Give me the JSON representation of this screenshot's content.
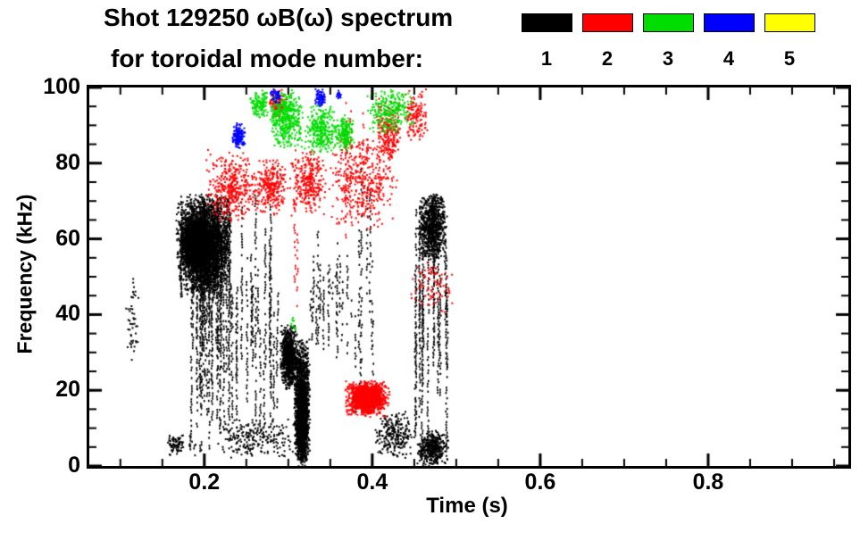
{
  "page": {
    "background": "#ffffff"
  },
  "chart_data": {
    "type": "scatter",
    "title": "Shot 129250 ωB(ω) spectrum",
    "subtitle": "for toroidal mode number:",
    "xlabel": "Time (s)",
    "ylabel": "Frequency (kHz)",
    "xlim": [
      0.063,
      0.967
    ],
    "ylim": [
      0,
      100
    ],
    "xticks": [
      0.2,
      0.4,
      0.6,
      0.8
    ],
    "xtick_labels": [
      "0.2",
      "0.4",
      "0.6",
      "0.8"
    ],
    "x_minor_step": 0.05,
    "yticks": [
      0,
      20,
      40,
      60,
      80,
      100
    ],
    "ytick_labels": [
      "0",
      "20",
      "40",
      "60",
      "80",
      "100"
    ],
    "y_minor_step": 5,
    "grid": false,
    "legend_position": "top-right",
    "legend": [
      {
        "label": "1",
        "color": "#000000"
      },
      {
        "label": "2",
        "color": "#ff0000"
      },
      {
        "label": "3",
        "color": "#00dd00"
      },
      {
        "label": "4",
        "color": "#0000ff"
      },
      {
        "label": "5",
        "color": "#ffff00"
      }
    ],
    "series": [
      {
        "name": "n=1",
        "color": "#000000",
        "clusters": [
          {
            "shape": "blob",
            "seed": 11,
            "t": [
              0.105,
              0.123
            ],
            "f": [
              23,
              54
            ],
            "n": 50
          },
          {
            "shape": "blob",
            "seed": 12,
            "t": [
              0.165,
              0.231
            ],
            "f": [
              45,
              72.5
            ],
            "n": 2800
          },
          {
            "shape": "blob",
            "seed": 13,
            "t": [
              0.169,
              0.207
            ],
            "f": [
              52,
              66
            ],
            "n": 1300
          },
          {
            "shape": "streaks",
            "seed": 14,
            "t": [
              0.168,
              0.232
            ],
            "f": [
              44,
              72
            ],
            "streaks": 45,
            "fill": 0.85
          },
          {
            "shape": "streaks",
            "seed": 15,
            "t": [
              0.18,
              0.287
            ],
            "f": [
              3,
              73
            ],
            "streaks": 52,
            "fill": 0.55
          },
          {
            "shape": "streaks",
            "seed": 16,
            "t": [
              0.176,
              0.2
            ],
            "f": [
              3,
              9
            ],
            "streaks": 8,
            "fill": 0.5
          },
          {
            "shape": "blob",
            "seed": 17,
            "t": [
              0.21,
              0.31
            ],
            "f": [
              2,
              13
            ],
            "n": 220
          },
          {
            "shape": "blob",
            "seed": 18,
            "t": [
              0.289,
              0.31
            ],
            "f": [
              20,
              38
            ],
            "n": 800
          },
          {
            "shape": "blob",
            "seed": 19,
            "t": [
              0.305,
              0.325
            ],
            "f": [
              0,
              34
            ],
            "n": 1500
          },
          {
            "shape": "blob",
            "seed": 20,
            "t": [
              0.308,
              0.322
            ],
            "f": [
              0,
              22
            ],
            "n": 900
          },
          {
            "shape": "streaks",
            "seed": 21,
            "t": [
              0.325,
              0.375
            ],
            "f": [
              28,
              64
            ],
            "streaks": 20,
            "fill": 0.45
          },
          {
            "shape": "streaks",
            "seed": 22,
            "t": [
              0.375,
              0.405
            ],
            "f": [
              5,
              90
            ],
            "streaks": 8,
            "fill": 0.4
          },
          {
            "shape": "streaks",
            "seed": 23,
            "t": [
              0.45,
              0.49
            ],
            "f": [
              0,
              76
            ],
            "streaks": 18,
            "fill": 0.6
          },
          {
            "shape": "blob",
            "seed": 24,
            "t": [
              0.452,
              0.488
            ],
            "f": [
              54,
              73
            ],
            "n": 800
          },
          {
            "shape": "blob",
            "seed": 25,
            "t": [
              0.452,
              0.49
            ],
            "f": [
              0,
              10
            ],
            "n": 400
          },
          {
            "shape": "blob",
            "seed": 26,
            "t": [
              0.4,
              0.45
            ],
            "f": [
              2,
              15
            ],
            "n": 250
          },
          {
            "shape": "blob",
            "seed": 27,
            "t": [
              0.153,
              0.176
            ],
            "f": [
              3,
              9
            ],
            "n": 80
          }
        ]
      },
      {
        "name": "n=2",
        "color": "#ff0000",
        "clusters": [
          {
            "shape": "blob",
            "seed": 31,
            "t": [
              0.2,
              0.262
            ],
            "f": [
              64,
              84
            ],
            "n": 380
          },
          {
            "shape": "blob",
            "seed": 32,
            "t": [
              0.255,
              0.3
            ],
            "f": [
              66,
              82
            ],
            "n": 280
          },
          {
            "shape": "streaks",
            "seed": 33,
            "t": [
              0.305,
              0.315
            ],
            "f": [
              40,
              88
            ],
            "streaks": 3,
            "fill": 0.4
          },
          {
            "shape": "blob",
            "seed": 34,
            "t": [
              0.3,
              0.345
            ],
            "f": [
              66,
              84
            ],
            "n": 300
          },
          {
            "shape": "blob",
            "seed": 35,
            "t": [
              0.366,
              0.42
            ],
            "f": [
              13,
              23
            ],
            "n": 1000
          },
          {
            "shape": "blob",
            "seed": 36,
            "t": [
              0.372,
              0.412
            ],
            "f": [
              15,
              22
            ],
            "n": 600
          },
          {
            "shape": "blob",
            "seed": 37,
            "t": [
              0.345,
              0.43
            ],
            "f": [
              62,
              88
            ],
            "n": 380
          },
          {
            "shape": "streaks",
            "seed": 38,
            "t": [
              0.36,
              0.42
            ],
            "f": [
              60,
              100
            ],
            "streaks": 12,
            "fill": 0.4
          },
          {
            "shape": "blob",
            "seed": 39,
            "t": [
              0.435,
              0.465
            ],
            "f": [
              85,
              100
            ],
            "n": 140
          },
          {
            "shape": "blob",
            "seed": 40,
            "t": [
              0.44,
              0.5
            ],
            "f": [
              40,
              55
            ],
            "n": 80
          },
          {
            "shape": "blob",
            "seed": 41,
            "t": [
              0.276,
              0.297
            ],
            "f": [
              92,
              100
            ],
            "n": 120
          },
          {
            "shape": "blob",
            "seed": 42,
            "t": [
              0.403,
              0.435
            ],
            "f": [
              80,
              97
            ],
            "n": 200
          }
        ]
      },
      {
        "name": "n=3",
        "color": "#00dd00",
        "clusters": [
          {
            "shape": "blob",
            "seed": 51,
            "t": [
              0.276,
              0.318
            ],
            "f": [
              84,
              100
            ],
            "n": 450
          },
          {
            "shape": "blob",
            "seed": 52,
            "t": [
              0.318,
              0.358
            ],
            "f": [
              82,
              96
            ],
            "n": 300
          },
          {
            "shape": "blob",
            "seed": 53,
            "t": [
              0.353,
              0.378
            ],
            "f": [
              83,
              93
            ],
            "n": 180
          },
          {
            "shape": "blob",
            "seed": 54,
            "t": [
              0.39,
              0.45
            ],
            "f": [
              88,
              100
            ],
            "n": 260
          },
          {
            "shape": "blob",
            "seed": 55,
            "t": [
              0.252,
              0.276
            ],
            "f": [
              92,
              100
            ],
            "n": 130
          },
          {
            "shape": "blob",
            "seed": 56,
            "t": [
              0.3,
              0.31
            ],
            "f": [
              36,
              40
            ],
            "n": 10
          }
        ]
      },
      {
        "name": "n=4",
        "color": "#0000ff",
        "clusters": [
          {
            "shape": "blob",
            "seed": 61,
            "t": [
              0.231,
              0.248
            ],
            "f": [
              84,
              91
            ],
            "n": 160
          },
          {
            "shape": "blob",
            "seed": 62,
            "t": [
              0.33,
              0.344
            ],
            "f": [
              95,
              100
            ],
            "n": 80
          },
          {
            "shape": "blob",
            "seed": 63,
            "t": [
              0.276,
              0.29
            ],
            "f": [
              96,
              100
            ],
            "n": 40
          },
          {
            "shape": "blob",
            "seed": 64,
            "t": [
              0.355,
              0.362
            ],
            "f": [
              97,
              100
            ],
            "n": 20
          }
        ]
      },
      {
        "name": "n=5",
        "color": "#ffff00",
        "clusters": []
      }
    ]
  }
}
